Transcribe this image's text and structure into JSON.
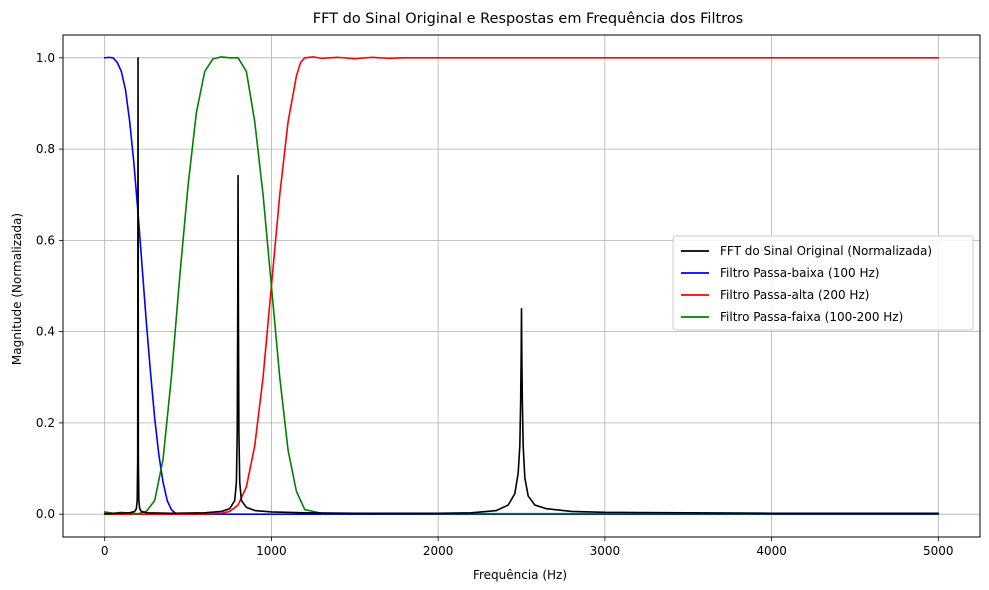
{
  "chart_data": {
    "type": "line",
    "title": "FFT do Sinal Original e Respostas em Frequência dos Filtros",
    "xlabel": "Frequência (Hz)",
    "ylabel": "Magnitude (Normalizada)",
    "xlim": [
      -250,
      5250
    ],
    "ylim": [
      -0.05,
      1.05
    ],
    "x_ticks": [
      0,
      1000,
      2000,
      3000,
      4000,
      5000
    ],
    "x_tick_labels": [
      "0",
      "1000",
      "2000",
      "3000",
      "4000",
      "5000"
    ],
    "y_ticks": [
      0.0,
      0.2,
      0.4,
      0.6,
      0.8,
      1.0
    ],
    "y_tick_labels": [
      "0.0",
      "0.2",
      "0.4",
      "0.6",
      "0.8",
      "1.0"
    ],
    "grid": true,
    "legend_position": "center-right",
    "series": [
      {
        "name": "FFT do Sinal Original (Normalizada)",
        "color": "#000000",
        "x": [
          0,
          150,
          180,
          190,
          195,
          198,
          200,
          202,
          205,
          210,
          220,
          250,
          400,
          600,
          700,
          750,
          780,
          790,
          795,
          798,
          800,
          802,
          805,
          810,
          820,
          850,
          900,
          1000,
          1200,
          1500,
          2000,
          2200,
          2350,
          2420,
          2460,
          2480,
          2490,
          2495,
          2498,
          2500,
          2502,
          2505,
          2510,
          2520,
          2540,
          2580,
          2650,
          2800,
          3000,
          3500,
          4000,
          4500,
          5000
        ],
        "y": [
          0.001,
          0.003,
          0.006,
          0.012,
          0.03,
          0.12,
          1.0,
          0.12,
          0.03,
          0.012,
          0.006,
          0.003,
          0.002,
          0.003,
          0.006,
          0.012,
          0.03,
          0.07,
          0.18,
          0.45,
          0.742,
          0.45,
          0.18,
          0.07,
          0.03,
          0.015,
          0.008,
          0.005,
          0.003,
          0.002,
          0.002,
          0.003,
          0.008,
          0.02,
          0.045,
          0.09,
          0.15,
          0.25,
          0.35,
          0.45,
          0.35,
          0.25,
          0.15,
          0.08,
          0.04,
          0.02,
          0.012,
          0.006,
          0.004,
          0.003,
          0.002,
          0.002,
          0.002
        ]
      },
      {
        "name": "Filtro Passa-baixa (100 Hz)",
        "color": "#0000ff",
        "x": [
          0,
          25,
          50,
          75,
          100,
          125,
          150,
          175,
          200,
          225,
          250,
          275,
          300,
          325,
          350,
          375,
          400,
          425,
          450,
          500,
          600,
          800,
          1000,
          1200,
          2000,
          3000,
          4000,
          5000
        ],
        "y": [
          1.0,
          1.001,
          1.0,
          0.99,
          0.97,
          0.93,
          0.86,
          0.77,
          0.66,
          0.54,
          0.42,
          0.31,
          0.21,
          0.13,
          0.07,
          0.03,
          0.01,
          0.002,
          0.0,
          0.0,
          0.0,
          0.0,
          0.0,
          0.0,
          0.0,
          0.0,
          0.0,
          0.0
        ]
      },
      {
        "name": "Filtro Passa-alta (200 Hz)",
        "color": "#ff0000",
        "x": [
          0,
          200,
          400,
          600,
          700,
          750,
          800,
          850,
          900,
          950,
          1000,
          1050,
          1100,
          1150,
          1175,
          1200,
          1250,
          1300,
          1400,
          1500,
          1600,
          1700,
          1800,
          2000,
          2500,
          3000,
          3500,
          4000,
          4500,
          5000
        ],
        "y": [
          0.0,
          0.0,
          0.0,
          0.0,
          0.002,
          0.006,
          0.02,
          0.06,
          0.15,
          0.3,
          0.5,
          0.7,
          0.86,
          0.96,
          0.99,
          1.0,
          1.002,
          0.999,
          1.001,
          0.998,
          1.001,
          0.999,
          1.0,
          1.0,
          1.0,
          1.0,
          1.0,
          1.0,
          1.0,
          1.0
        ]
      },
      {
        "name": "Filtro Passa-faixa (100-200 Hz)",
        "color": "#008000",
        "x": [
          0,
          50,
          100,
          150,
          200,
          250,
          300,
          350,
          400,
          450,
          500,
          550,
          600,
          650,
          700,
          750,
          800,
          850,
          900,
          950,
          1000,
          1050,
          1100,
          1150,
          1200,
          1300,
          2000,
          3000,
          4000,
          5000
        ],
        "y": [
          0.005,
          0.002,
          0.004,
          0.002,
          0.001,
          0.006,
          0.03,
          0.12,
          0.3,
          0.52,
          0.72,
          0.88,
          0.97,
          0.998,
          1.002,
          1.0,
          1.0,
          0.97,
          0.86,
          0.7,
          0.5,
          0.3,
          0.14,
          0.05,
          0.01,
          0.002,
          0.001,
          0.001,
          0.001,
          0.001
        ]
      }
    ]
  }
}
